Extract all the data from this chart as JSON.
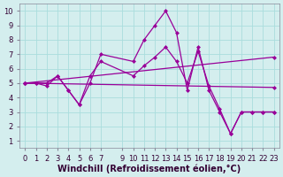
{
  "background_color": "#d4eeee",
  "grid_color": "#aadddd",
  "line_color": "#990099",
  "xlabel": "Windchill (Refroidissement éolien,°C)",
  "xlabel_fontsize": 7,
  "tick_fontsize": 6,
  "xlim": [
    -0.5,
    23.5
  ],
  "ylim": [
    0.5,
    10.5
  ],
  "yticks": [
    1,
    2,
    3,
    4,
    5,
    6,
    7,
    8,
    9,
    10
  ],
  "xticks": [
    0,
    1,
    2,
    3,
    4,
    5,
    6,
    7,
    9,
    10,
    11,
    12,
    13,
    14,
    15,
    16,
    17,
    18,
    19,
    20,
    21,
    22,
    23
  ],
  "series1_x": [
    0,
    1,
    2,
    3,
    4,
    5,
    6,
    7,
    10,
    11,
    12,
    13,
    14,
    15,
    16,
    17,
    18,
    19,
    20,
    21,
    22,
    23
  ],
  "series1_y": [
    5,
    5,
    5,
    5.5,
    4.5,
    3.5,
    5.0,
    7.0,
    6.5,
    8.0,
    9.0,
    10.0,
    8.5,
    4.5,
    7.5,
    4.5,
    3.0,
    1.5,
    3.0,
    3.0,
    3.0,
    3.0
  ],
  "series2_x": [
    0,
    1,
    2,
    3,
    4,
    5,
    6,
    7,
    10,
    11,
    12,
    13,
    14,
    15,
    16,
    17,
    18,
    19,
    20,
    21,
    22,
    23
  ],
  "series2_y": [
    5,
    5,
    4.8,
    5.5,
    4.5,
    3.5,
    5.5,
    6.5,
    5.5,
    6.2,
    6.8,
    7.5,
    6.5,
    5.0,
    7.2,
    4.8,
    3.2,
    1.5,
    3.0,
    3.0,
    3.0,
    3.0
  ],
  "series3_x": [
    0,
    23
  ],
  "series3_y": [
    5.0,
    6.8
  ],
  "series4_x": [
    0,
    23
  ],
  "series4_y": [
    5.0,
    4.7
  ]
}
